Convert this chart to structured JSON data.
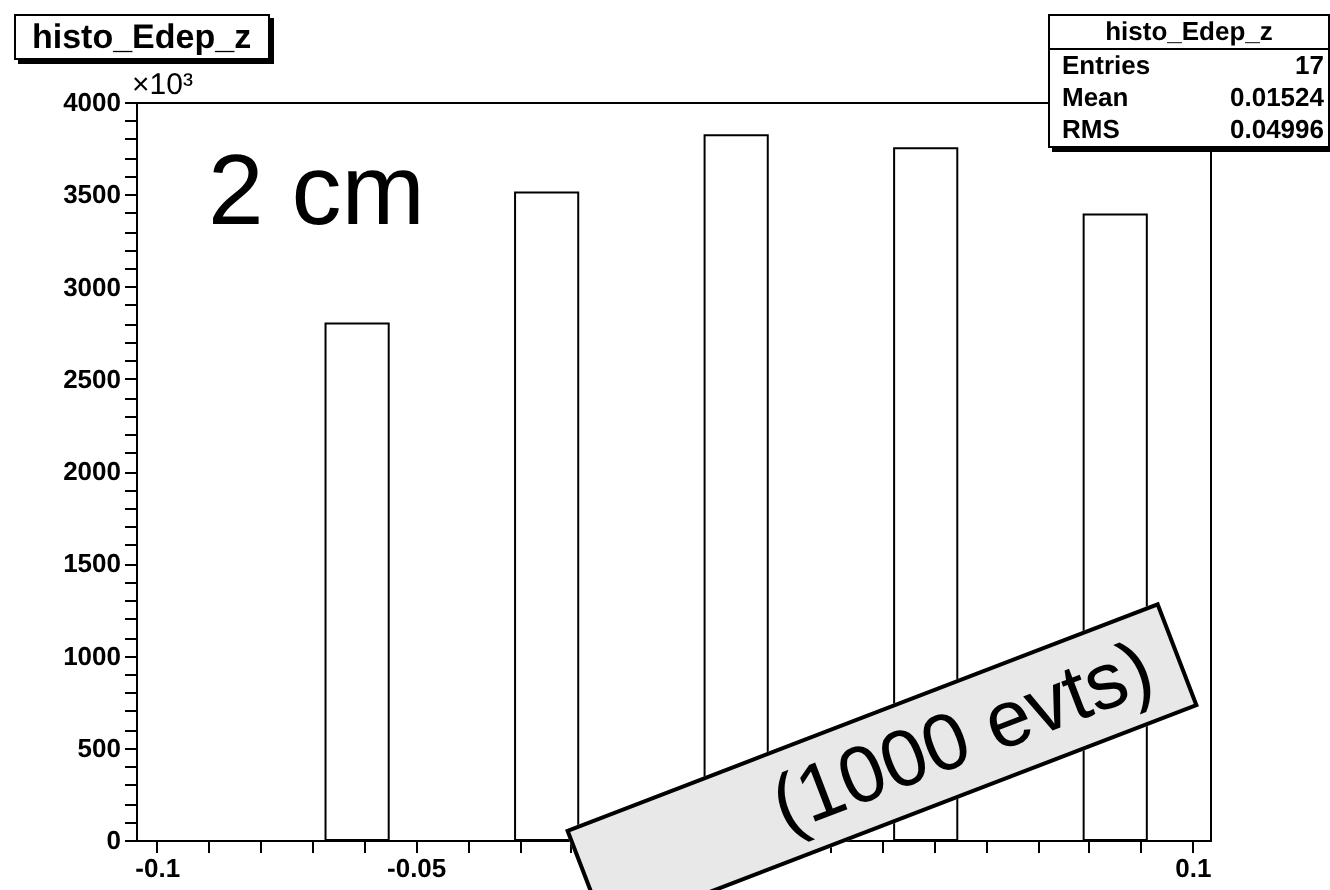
{
  "chart_data": {
    "type": "histogram",
    "title": "histo_Edep_z",
    "bins": [
      -0.104,
      -0.0918,
      -0.0796,
      -0.0674,
      -0.0552,
      -0.043,
      -0.0308,
      -0.0186,
      -0.0064,
      0.0058,
      0.018,
      0.0302,
      0.0424,
      0.0546,
      0.0668,
      0.079,
      0.0912,
      0.1034
    ],
    "values": [
      0,
      0,
      0,
      2800,
      0,
      0,
      3510,
      0,
      0,
      3820,
      0,
      0,
      3750,
      0,
      0,
      3390,
      0
    ],
    "color": "#ffffff",
    "xlim": [
      -0.104,
      0.1034
    ],
    "ylim": [
      0,
      4000
    ],
    "xticks": [
      -0.1,
      {
        "value": -0.09,
        "label": null
      },
      {
        "value": -0.08,
        "label": null
      },
      {
        "value": -0.07,
        "label": null
      },
      {
        "value": -0.06,
        "label": null
      },
      -0.05,
      {
        "value": -0.04,
        "label": null
      },
      {
        "value": -0.03,
        "label": null
      },
      {
        "value": -0.02,
        "label": null
      },
      {
        "value": -0.01,
        "label": null
      },
      {
        "value": 0,
        "label": null
      },
      {
        "value": 0.01,
        "label": null
      },
      {
        "value": 0.02,
        "label": null
      },
      {
        "value": 0.03,
        "label": null
      },
      {
        "value": 0.04,
        "label": null
      },
      {
        "value": 0.05,
        "label": null
      },
      {
        "value": 0.06,
        "label": null
      },
      {
        "value": 0.07,
        "label": null
      },
      {
        "value": 0.08,
        "label": null
      },
      {
        "value": 0.09,
        "label": null
      },
      0.1
    ],
    "yticks": [
      0,
      {
        "value": 100,
        "label": null
      },
      {
        "value": 200,
        "label": null
      },
      {
        "value": 300,
        "label": null
      },
      {
        "value": 400,
        "label": null
      },
      500,
      {
        "value": 600,
        "label": null
      },
      {
        "value": 700,
        "label": null
      },
      {
        "value": 800,
        "label": null
      },
      {
        "value": 900,
        "label": null
      },
      1000,
      {
        "value": 1100,
        "label": null
      },
      {
        "value": 1200,
        "label": null
      },
      {
        "value": 1300,
        "label": null
      },
      {
        "value": 1400,
        "label": null
      },
      1500,
      {
        "value": 1600,
        "label": null
      },
      {
        "value": 1700,
        "label": null
      },
      {
        "value": 1800,
        "label": null
      },
      {
        "value": 1900,
        "label": null
      },
      2000,
      {
        "value": 2100,
        "label": null
      },
      {
        "value": 2200,
        "label": null
      },
      {
        "value": 2300,
        "label": null
      },
      {
        "value": 2400,
        "label": null
      },
      2500,
      {
        "value": 2600,
        "label": null
      },
      {
        "value": 2700,
        "label": null
      },
      {
        "value": 2800,
        "label": null
      },
      {
        "value": 2900,
        "label": null
      },
      3000,
      {
        "value": 3100,
        "label": null
      },
      {
        "value": 3200,
        "label": null
      },
      {
        "value": 3300,
        "label": null
      },
      {
        "value": 3400,
        "label": null
      },
      3500,
      {
        "value": 3600,
        "label": null
      },
      {
        "value": 3700,
        "label": null
      },
      {
        "value": 3800,
        "label": null
      },
      {
        "value": 3900,
        "label": null
      },
      4000
    ],
    "grid": false,
    "annotations": [
      "×10³",
      "2 cm",
      "(1000 evts)",
      "histo_Edep_z",
      "Entries",
      "17",
      "Mean",
      "0.01524",
      "RMS",
      "0.04996"
    ]
  }
}
